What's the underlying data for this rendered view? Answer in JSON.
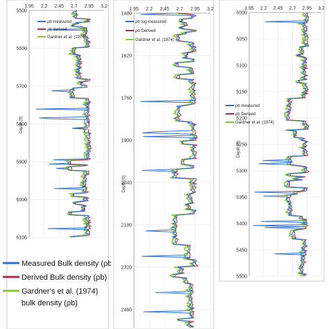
{
  "colors": {
    "measured": "#2f6fce",
    "derived": "#b02a4a",
    "gardner": "#8cc63f"
  },
  "legend_outer": {
    "measured": "Measured Bulk density (ρb)",
    "derived": "Derived Bulk density (ρb)",
    "gardner_line1": "Gardner’s et al. (1974)",
    "gardner_line2": "bulk density (ρb)"
  },
  "chart_data": [
    {
      "type": "line",
      "ylabel": "Depth (ft)",
      "xticks": [
        "1.95",
        "2.2",
        "2.45",
        "2.7",
        "2.95",
        "3.2"
      ],
      "xlim": [
        1.95,
        3.2
      ],
      "yticks": [
        5500,
        5600,
        5700,
        5800,
        5900,
        6000,
        6100
      ],
      "ylim": [
        5500,
        6100
      ],
      "legend_position": "top-left",
      "series": [
        {
          "name": "ρb measured",
          "key": "measured"
        },
        {
          "name": "ρb derived",
          "key": "derived"
        },
        {
          "name": "Gardner et al. (1974)",
          "key": "gardner"
        }
      ]
    },
    {
      "type": "line",
      "ylabel": "Depth (ft)",
      "xticks": [
        "1.95",
        "2.2",
        "2.45",
        "2.7",
        "2.95",
        "3.2"
      ],
      "xlim": [
        1.95,
        3.2
      ],
      "yticks": [
        1480,
        1620,
        1760,
        1900,
        2040,
        2180,
        2320,
        2460
      ],
      "ylim": [
        1480,
        2520
      ],
      "legend_position": "top-left",
      "series": [
        {
          "name": "ρb log measured",
          "key": "measured"
        },
        {
          "name": "ρb Derived",
          "key": "derived"
        },
        {
          "name": "Gardner et al. (1974)",
          "key": "gardner"
        }
      ]
    },
    {
      "type": "line",
      "ylabel": "Depth (ft)",
      "xticks": [
        "1.95",
        "2.2",
        "2.45",
        "2.7",
        "2.95",
        "3.2"
      ],
      "xlim": [
        1.95,
        3.2
      ],
      "yticks": [
        5000,
        5050,
        5100,
        5150,
        5200,
        5250,
        5300,
        5350,
        5400,
        5450,
        5500
      ],
      "ylim": [
        5000,
        5500
      ],
      "legend_position": "middle-left",
      "series": [
        {
          "name": "ρb measured",
          "key": "measured"
        },
        {
          "name": "ρb Derived",
          "key": "derived"
        },
        {
          "name": "Gardner et al. (1974)",
          "key": "gardner"
        }
      ]
    }
  ]
}
